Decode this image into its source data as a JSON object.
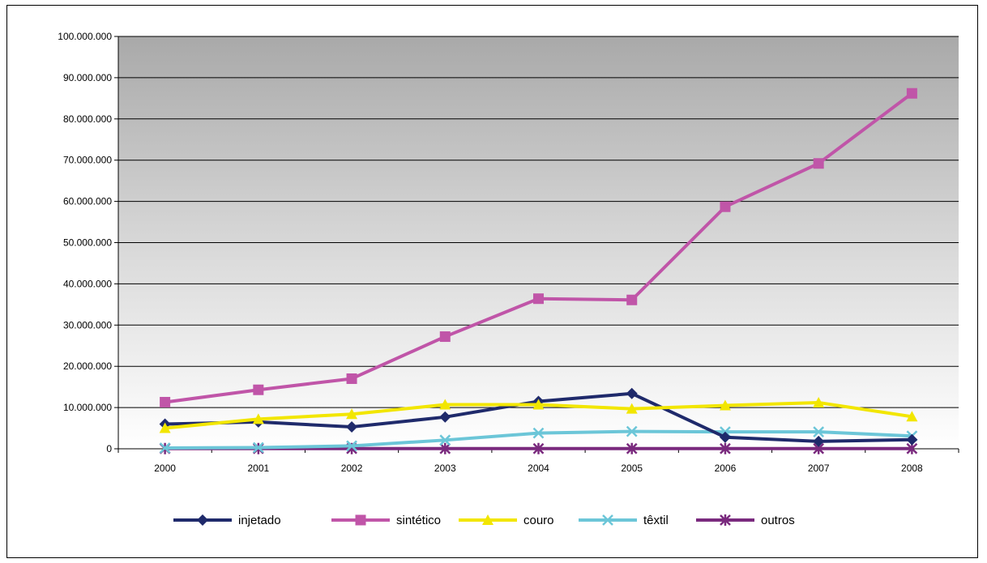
{
  "chart_data": {
    "type": "line",
    "title": "",
    "xlabel": "",
    "ylabel": "",
    "categories": [
      "2000",
      "2001",
      "2002",
      "2003",
      "2004",
      "2005",
      "2006",
      "2007",
      "2008"
    ],
    "ylim": [
      0,
      100000000
    ],
    "yticks": [
      0,
      10000000,
      20000000,
      30000000,
      40000000,
      50000000,
      60000000,
      70000000,
      80000000,
      90000000,
      100000000
    ],
    "ytick_labels": [
      "0",
      "10.000.000",
      "20.000.000",
      "30.000.000",
      "40.000.000",
      "50.000.000",
      "60.000.000",
      "70.000.000",
      "80.000.000",
      "90.000.000",
      "100.000.000"
    ],
    "grid": true,
    "legend_position": "bottom",
    "series": [
      {
        "name": "injetado",
        "color": "#1f2a6b",
        "marker": "diamond",
        "values": [
          6000000,
          6500000,
          5300000,
          7700000,
          11500000,
          13400000,
          2800000,
          1800000,
          2200000
        ]
      },
      {
        "name": "sintético",
        "color": "#c055a8",
        "marker": "square",
        "values": [
          11300000,
          14300000,
          17000000,
          27200000,
          36400000,
          36100000,
          58700000,
          69200000,
          86200000
        ]
      },
      {
        "name": "couro",
        "color": "#f2e600",
        "marker": "triangle",
        "values": [
          5000000,
          7200000,
          8400000,
          10700000,
          10700000,
          9700000,
          10500000,
          11200000,
          7800000
        ]
      },
      {
        "name": "têxtil",
        "color": "#6cc6d8",
        "marker": "x",
        "values": [
          200000,
          300000,
          700000,
          2100000,
          3800000,
          4200000,
          4100000,
          4100000,
          3100000
        ]
      },
      {
        "name": "outros",
        "color": "#7a2a7e",
        "marker": "star",
        "values": [
          50000,
          50000,
          50000,
          50000,
          50000,
          50000,
          50000,
          50000,
          50000
        ]
      }
    ]
  }
}
